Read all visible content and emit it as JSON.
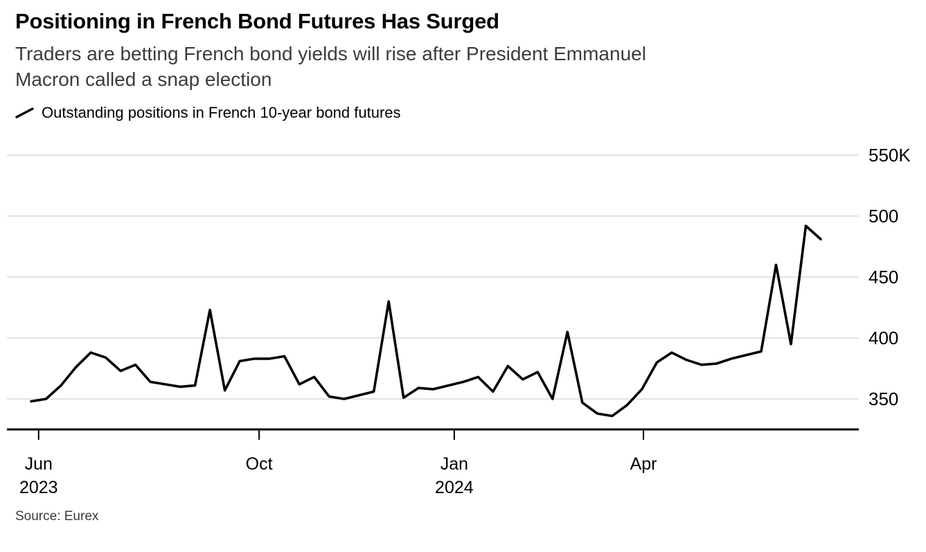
{
  "header": {
    "title": "Positioning in French Bond Futures Has Surged",
    "subtitle_lines": [
      "Traders are betting French bond yields will rise after President Emmanuel",
      "Macron called a snap election"
    ]
  },
  "legend": {
    "label": "Outstanding positions in French 10-year bond futures"
  },
  "source": "Source: Eurex",
  "chart_data": {
    "type": "line",
    "title": "Positioning in French Bond Futures Has Surged",
    "series": [
      {
        "name": "Outstanding positions in French 10-year bond futures",
        "values": [
          348,
          350,
          361,
          376,
          388,
          384,
          373,
          378,
          364,
          362,
          360,
          361,
          423,
          357,
          381,
          383,
          383,
          385,
          362,
          368,
          352,
          350,
          353,
          356,
          430,
          351,
          359,
          358,
          361,
          364,
          368,
          356,
          377,
          366,
          372,
          350,
          405,
          347,
          338,
          336,
          345,
          358,
          380,
          388,
          382,
          378,
          379,
          383,
          386,
          389,
          460,
          395,
          492,
          481
        ]
      }
    ],
    "value_unit": "K",
    "ylim": [
      325,
      555
    ],
    "yticks": [
      {
        "value": 550,
        "label": "550K"
      },
      {
        "value": 500,
        "label": "500"
      },
      {
        "value": 450,
        "label": "450"
      },
      {
        "value": 400,
        "label": "400"
      },
      {
        "value": 350,
        "label": "350"
      }
    ],
    "xticks": [
      {
        "label": "Jun",
        "year": "2023",
        "index": 0.5
      },
      {
        "label": "Oct",
        "year": "",
        "index": 15.3
      },
      {
        "label": "Jan",
        "year": "2024",
        "index": 28.4
      },
      {
        "label": "Apr",
        "year": "",
        "index": 41.1
      }
    ],
    "grid": true,
    "legend_position": "top-left",
    "line_color": "#000000",
    "grid_color": "#d9d9d9",
    "axis_color": "#000000"
  }
}
